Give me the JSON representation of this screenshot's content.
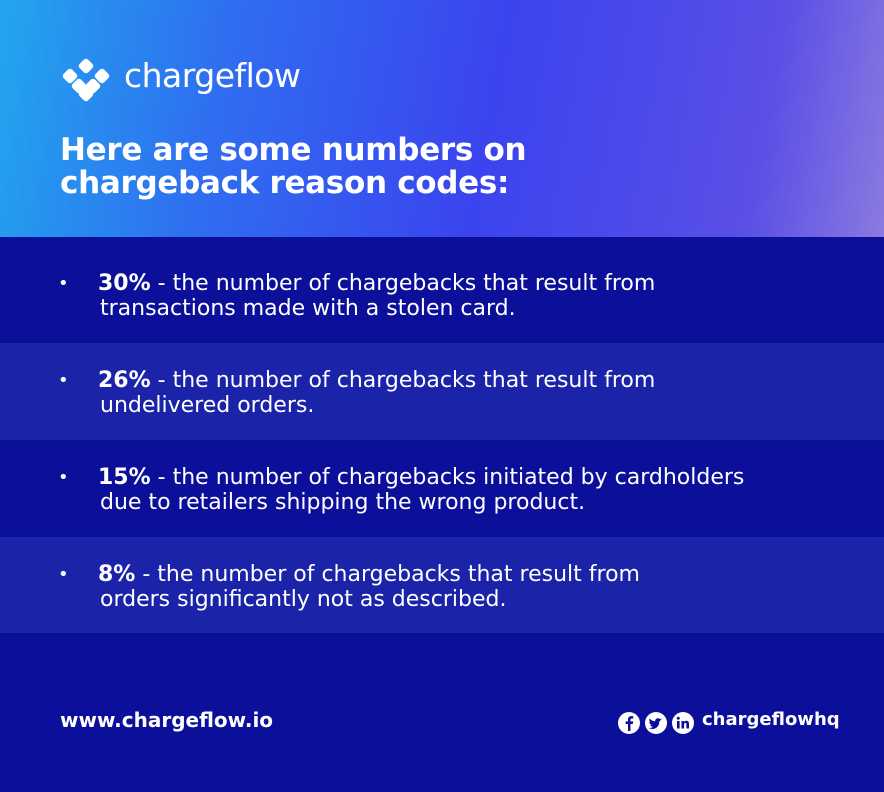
{
  "header": {
    "brand": "chargeflow",
    "title_lines": [
      "Here are some numbers on",
      "chargeback reason codes:"
    ]
  },
  "items": [
    {
      "stat": "30%",
      "lines": [
        "- the number of chargebacks that result from",
        "transactions made with a stolen card."
      ]
    },
    {
      "stat": "26%",
      "lines": [
        "- the number of chargebacks that result from",
        "undelivered orders."
      ]
    },
    {
      "stat": "15%",
      "lines": [
        "- the number of chargebacks initiated by cardholders",
        "due to retailers shipping the wrong product."
      ]
    },
    {
      "stat": "8%",
      "lines": [
        "- the number of chargebacks that result from",
        "orders significantly not as described."
      ]
    }
  ],
  "footer": {
    "url": "www.chargeflow.io",
    "handle": "chargeflowhq"
  }
}
